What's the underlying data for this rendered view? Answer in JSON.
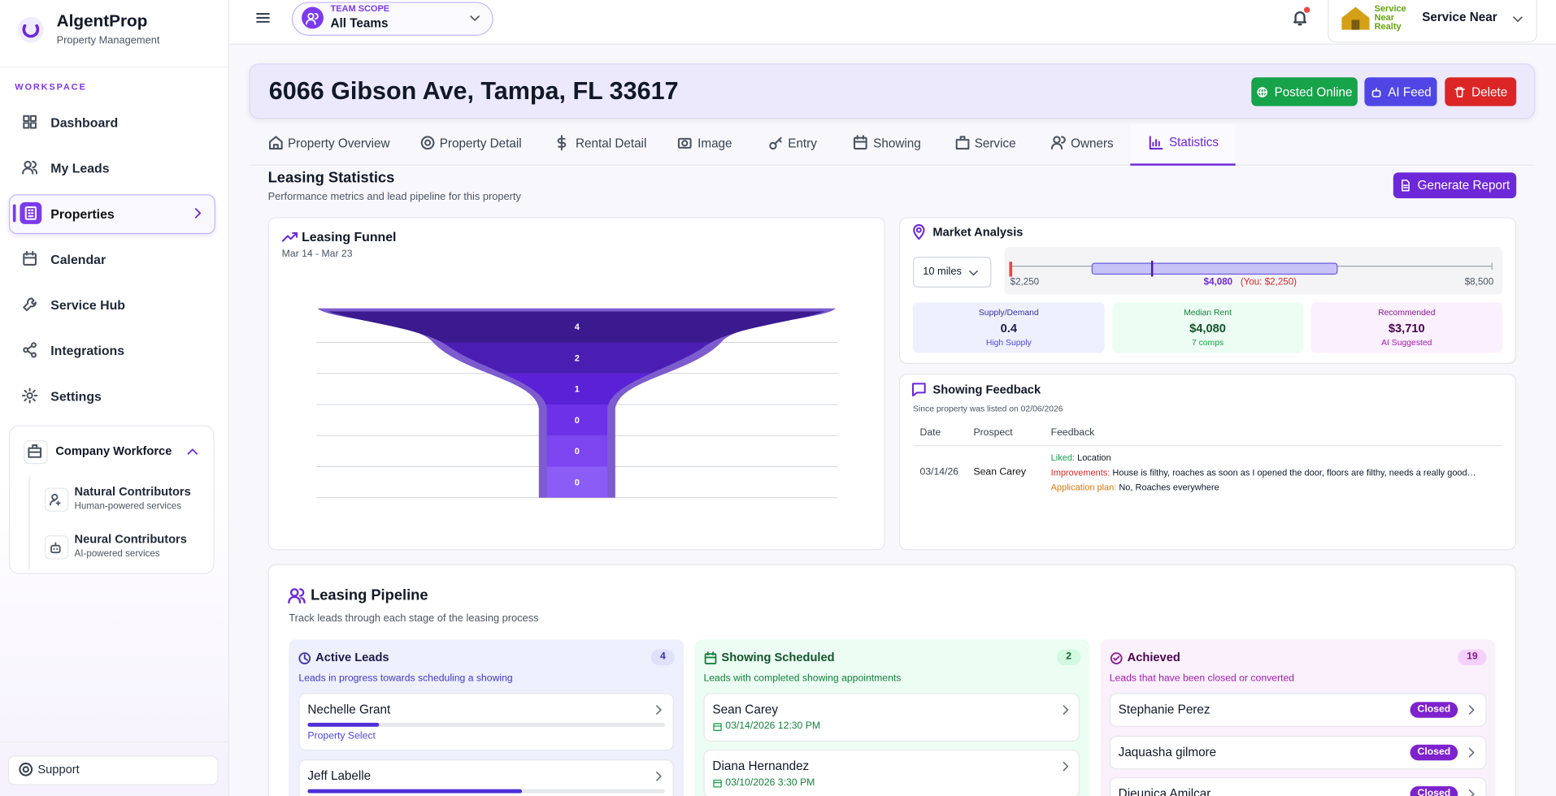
{
  "sidebar": {
    "brand": "AlgentProp",
    "brand_sub": "Property Management",
    "section": "WORKSPACE",
    "nav": [
      "Dashboard",
      "My Leads",
      "Properties",
      "Calendar",
      "Service Hub",
      "Integrations",
      "Settings"
    ],
    "workforce": {
      "title": "Company Workforce",
      "items": [
        {
          "label": "Natural Contributors",
          "sub": "Human-powered services"
        },
        {
          "label": "Neural Contributors",
          "sub": "AI-powered services"
        }
      ]
    },
    "support": "Support"
  },
  "topbar": {
    "scope_label": "TEAM SCOPE",
    "scope_value": "All Teams",
    "logo_text": [
      "Service",
      "Near",
      "Realty"
    ],
    "account": "Service Near"
  },
  "property": {
    "address": "6066 Gibson Ave, Tampa, FL 33617",
    "actions": [
      "Posted Online",
      "AI Feed",
      "Delete"
    ]
  },
  "tabs": [
    "Property Overview",
    "Property Detail",
    "Rental Detail",
    "Image",
    "Entry",
    "Showing",
    "Service",
    "Owners",
    "Statistics"
  ],
  "statistics": {
    "title": "Leasing Statistics",
    "subtitle": "Performance metrics and lead pipeline for this property",
    "button": "Generate Report"
  },
  "funnel": {
    "title": "Leasing Funnel",
    "range": "Mar 14 - Mar 23",
    "values": [
      4,
      2,
      1,
      0,
      0,
      0
    ]
  },
  "market": {
    "title": "Market Analysis",
    "radius": "10 miles",
    "min": "$2,250",
    "median": "$4,080",
    "you": "(You: $2,250)",
    "max": "$8,500",
    "cards": [
      {
        "label": "Supply/Demand",
        "value": "0.4",
        "note": "High Supply"
      },
      {
        "label": "Median Rent",
        "value": "$4,080",
        "note": "7 comps"
      },
      {
        "label": "Recommended",
        "value": "$3,710",
        "note": "AI Suggested"
      }
    ]
  },
  "feedback": {
    "title": "Showing Feedback",
    "since": "Since property was listed on 02/06/2026",
    "columns": [
      "Date",
      "Prospect",
      "Feedback"
    ],
    "rows": [
      {
        "date": "03/14/26",
        "prospect": "Sean Carey",
        "liked_label": "Liked:",
        "liked": "Location",
        "improvements_label": "Improvements:",
        "improvements": "House is filthy, roaches as soon as I opened the door, floors are filthy, needs a really good…",
        "plan_label": "Application plan:",
        "plan": "No, Roaches everywhere"
      }
    ]
  },
  "pipeline": {
    "title": "Leasing Pipeline",
    "subtitle": "Track leads through each stage of the leasing process",
    "columns": [
      {
        "title": "Active Leads",
        "count": 4,
        "desc": "Leads in progress towards scheduling a showing",
        "leads": [
          {
            "name": "Nechelle Grant",
            "progress": 20,
            "stage": "Property Select"
          },
          {
            "name": "Jeff Labelle",
            "progress": 60
          }
        ]
      },
      {
        "title": "Showing Scheduled",
        "count": 2,
        "desc": "Leads with completed showing appointments",
        "leads": [
          {
            "name": "Sean Carey",
            "time": "03/14/2026 12:30 PM"
          },
          {
            "name": "Diana Hernandez",
            "time": "03/10/2026 3:30 PM"
          }
        ]
      },
      {
        "title": "Achieved",
        "count": 19,
        "desc": "Leads that have been closed or converted",
        "leads": [
          {
            "name": "Stephanie Perez",
            "status": "Closed"
          },
          {
            "name": "Jaquasha gilmore",
            "status": "Closed"
          },
          {
            "name": "Dieunica Amilcar",
            "status": "Closed"
          }
        ]
      }
    ]
  }
}
